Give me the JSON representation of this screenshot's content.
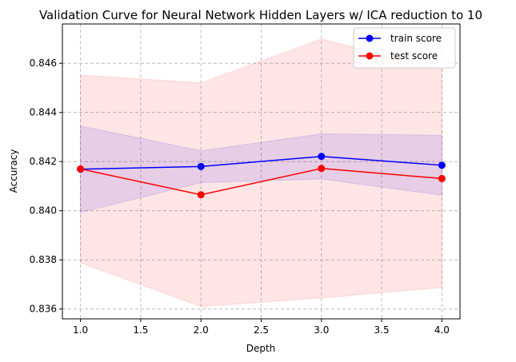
{
  "chart_data": {
    "type": "line",
    "title": "Validation Curve for Neural Network Hidden Layers w/ ICA reduction to 10",
    "xlabel": "Depth",
    "ylabel": "Accuracy",
    "x": [
      1.0,
      2.0,
      3.0,
      4.0
    ],
    "xlim": [
      0.85,
      4.15
    ],
    "ylim": [
      0.8356,
      0.8476
    ],
    "xticks": [
      1.0,
      1.5,
      2.0,
      2.5,
      3.0,
      3.5,
      4.0
    ],
    "xtick_labels": [
      "1.0",
      "1.5",
      "2.0",
      "2.5",
      "3.0",
      "3.5",
      "4.0"
    ],
    "yticks": [
      0.836,
      0.838,
      0.84,
      0.842,
      0.844,
      0.846
    ],
    "ytick_labels": [
      "0.836",
      "0.838",
      "0.840",
      "0.842",
      "0.844",
      "0.846"
    ],
    "grid": true,
    "legend_position": "top-right",
    "series": [
      {
        "name": "train score",
        "color": "#0000ff",
        "values": [
          0.84169,
          0.8418,
          0.84221,
          0.84185
        ],
        "band_lower": [
          0.83993,
          0.84114,
          0.84129,
          0.84063
        ],
        "band_upper": [
          0.84345,
          0.84244,
          0.84313,
          0.84307
        ],
        "band_color": "#0000ff"
      },
      {
        "name": "test score",
        "color": "#ff0000",
        "values": [
          0.8417,
          0.84065,
          0.84172,
          0.84131
        ],
        "band_lower": [
          0.83788,
          0.8361,
          0.83645,
          0.83688
        ],
        "band_upper": [
          0.84552,
          0.8452,
          0.84699,
          0.84574
        ],
        "band_color": "#ff0000"
      }
    ]
  }
}
